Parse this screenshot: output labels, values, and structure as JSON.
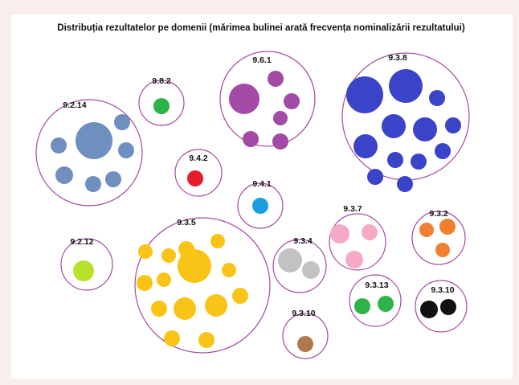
{
  "title": "Distribuția rezultatelor pe domenii (mărimea bulinei arată frecvența nominalizării rezultatului)",
  "groups": [
    {
      "label": "9.8.2",
      "color": "#2db34a"
    },
    {
      "label": "9.2.14",
      "color": "#6f8fbf"
    },
    {
      "label": "9.6.1",
      "color": "#a24aa6"
    },
    {
      "label": "9.3.8",
      "color": "#3b44c8"
    },
    {
      "label": "9.4.2",
      "color": "#e41e2b"
    },
    {
      "label": "9.4.1",
      "color": "#1a9de0"
    },
    {
      "label": "9.3.7",
      "color": "#f5a9c6"
    },
    {
      "label": "9.3.2",
      "color": "#f08030"
    },
    {
      "label": "9.2.12",
      "color": "#b7e12a"
    },
    {
      "label": "9.3.5",
      "color": "#f9c416"
    },
    {
      "label": "9.3.4",
      "color": "#c2c2c2"
    },
    {
      "label": "9.3.13",
      "color": "#2db34a"
    },
    {
      "label": "9.3.10",
      "color": "#111111"
    },
    {
      "label": "9.3.10",
      "color": "#b07850"
    }
  ]
}
